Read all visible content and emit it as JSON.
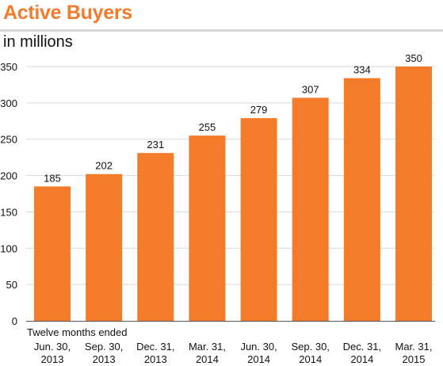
{
  "title": "Active Buyers",
  "subtitle": "in millions",
  "chart_data": {
    "type": "bar",
    "title": "Active Buyers",
    "subtitle": "in millions",
    "xlabel": "Twelve months ended",
    "ylabel": "",
    "categories": [
      [
        "Jun. 30,",
        "2013"
      ],
      [
        "Sep. 30,",
        "2013"
      ],
      [
        "Dec. 31,",
        "2013"
      ],
      [
        "Mar. 31,",
        "2014"
      ],
      [
        "Jun. 30,",
        "2014"
      ],
      [
        "Sep. 30,",
        "2014"
      ],
      [
        "Dec. 31,",
        "2014"
      ],
      [
        "Mar. 31,",
        "2015"
      ]
    ],
    "values": [
      185,
      202,
      231,
      255,
      279,
      307,
      334,
      350
    ],
    "data_labels": [
      "185",
      "202",
      "231",
      "255",
      "279",
      "307",
      "334",
      "350"
    ],
    "ylim": [
      0,
      350
    ],
    "yticks": [
      0,
      50,
      100,
      150,
      200,
      250,
      300,
      350
    ],
    "grid": "horizontal",
    "bar_color": "#f47b2a",
    "grid_color": "#d9d9d9",
    "title_color": "#f47b2a"
  }
}
